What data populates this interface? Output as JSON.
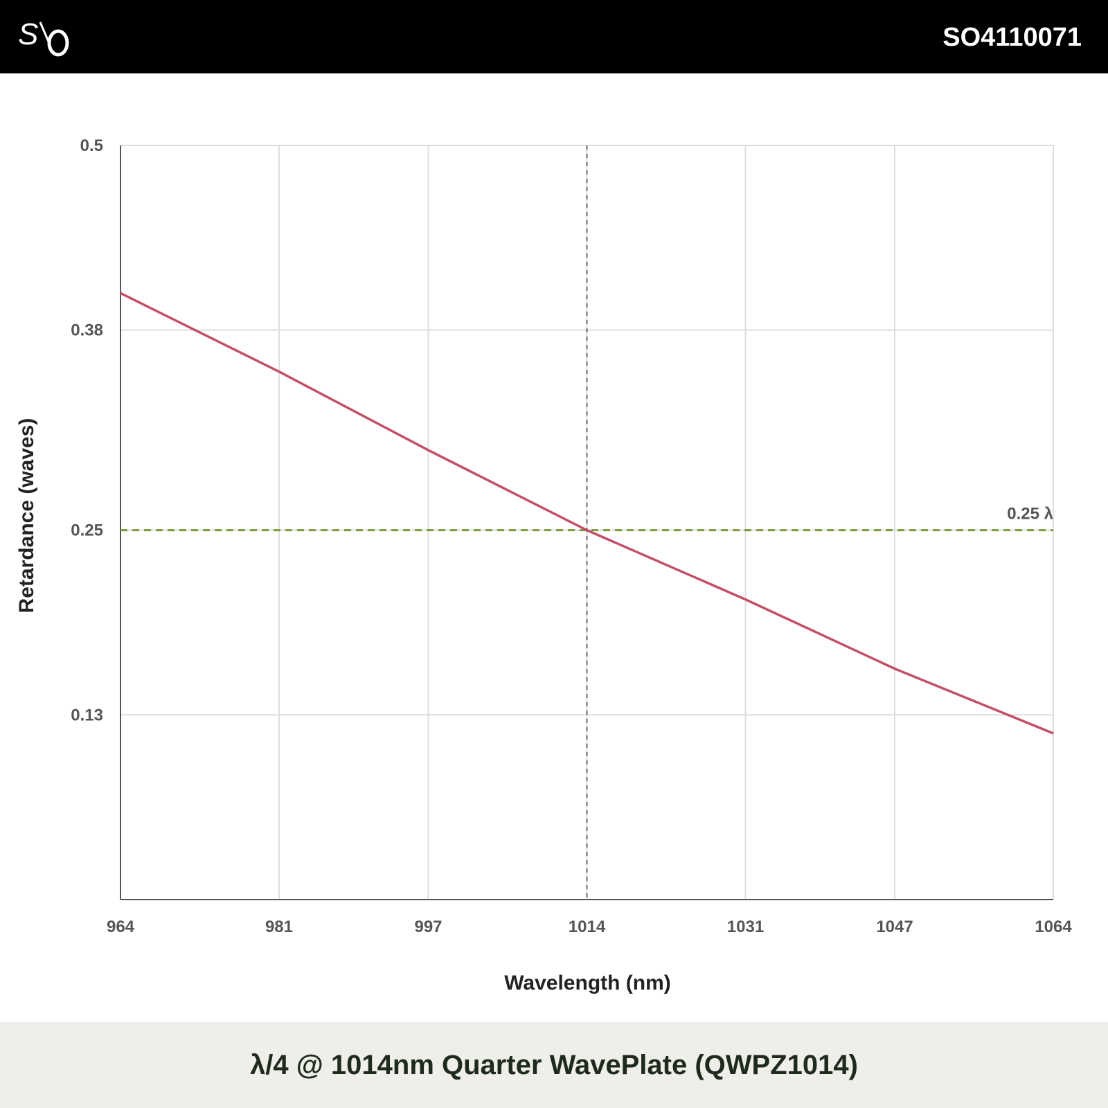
{
  "header": {
    "logo_text": "S/O",
    "part_number": "SO4110071"
  },
  "footer": {
    "title": "λ/4 @ 1014nm Quarter WavePlate (QWPZ1014)"
  },
  "colors": {
    "header_bg": "#000000",
    "footer_bg": "#eeefe9",
    "series_line": "#c25066",
    "reference_line": "#7a9a3a",
    "center_line": "#666666",
    "grid": "#dddddd"
  },
  "chart_data": {
    "type": "line",
    "title": "",
    "xlabel": "Wavelength (nm)",
    "ylabel": "Retardance (waves)",
    "xlim": [
      964,
      1064
    ],
    "ylim": [
      0.01,
      0.5
    ],
    "x_ticks": [
      964,
      981,
      997,
      1014,
      1031,
      1047,
      1064
    ],
    "x_tick_labels": [
      "964",
      "981",
      "997",
      "1014",
      "1031",
      "1047",
      "1064"
    ],
    "y_ticks": [
      0.13,
      0.25,
      0.38,
      0.5
    ],
    "y_tick_labels": [
      "0.13",
      "0.25",
      "0.38",
      "0.5"
    ],
    "grid": true,
    "series": [
      {
        "name": "",
        "x": [
          964,
          981,
          997,
          1014,
          1031,
          1047,
          1064
        ],
        "y": [
          0.404,
          0.353,
          0.302,
          0.25,
          0.205,
          0.16,
          0.118
        ]
      }
    ],
    "reference_lines": {
      "horizontal": {
        "y": 0.25,
        "label": "0.25 λ",
        "style": "dashed"
      },
      "vertical": {
        "x": 1014,
        "style": "dashed"
      }
    }
  }
}
